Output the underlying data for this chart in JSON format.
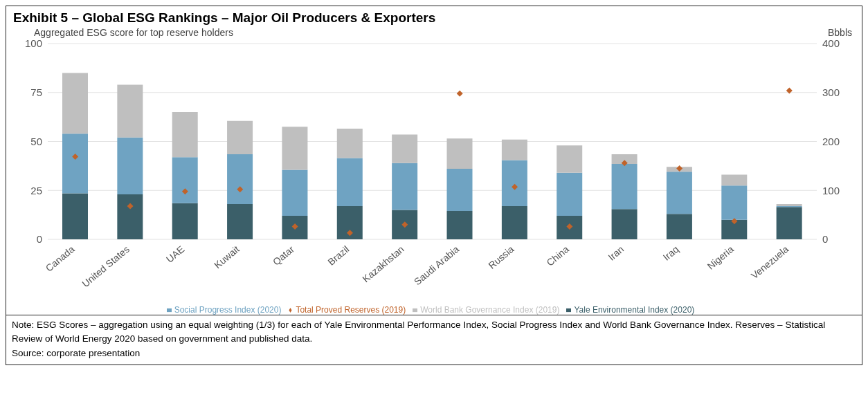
{
  "chart_data": {
    "type": "bar",
    "title": "Exhibit 5 – Global ESG Rankings – Major Oil Producers & Exporters",
    "ylabel": "Aggregated ESG score for top reserve holders",
    "y2label": "Bbbls",
    "categories": [
      "Canada",
      "United States",
      "UAE",
      "Kuwait",
      "Qatar",
      "Brazil",
      "Kazakhstan",
      "Saudi Arabia",
      "Russia",
      "China",
      "Iran",
      "Iraq",
      "Nigeria",
      "Venezuela"
    ],
    "stacked": true,
    "series": [
      {
        "name": "Yale Environmental Index (2020)",
        "color": "#3b5f69",
        "values": [
          23.5,
          23,
          18.5,
          18,
          12,
          17,
          15,
          14.5,
          17,
          12,
          15.5,
          13,
          10,
          16.5
        ]
      },
      {
        "name": "Social Progress Index (2020)",
        "color": "#6fa3c2",
        "values": [
          30.5,
          29,
          23.5,
          25.5,
          23.5,
          24.5,
          24,
          21.5,
          23.5,
          22,
          23,
          21.5,
          17.5,
          0.5
        ]
      },
      {
        "name": "World Bank Governance Index (2019)",
        "color": "#bfbfbf",
        "values": [
          31,
          27,
          23,
          17,
          22,
          15,
          14.5,
          15.5,
          10.5,
          14,
          5,
          2.5,
          5.5,
          1
        ]
      },
      {
        "name": "Total Proved Reserves (2019)",
        "type": "scatter",
        "axis": "y2",
        "marker": "diamond",
        "color": "#c0632a",
        "values": [
          169,
          68,
          98,
          102,
          26,
          13,
          30,
          298,
          107,
          26,
          156,
          145,
          37,
          304
        ]
      }
    ],
    "ylim": [
      0,
      100
    ],
    "yticks": [
      0,
      25,
      50,
      75,
      100
    ],
    "y2lim": [
      0,
      400
    ],
    "y2ticks": [
      0,
      100,
      200,
      300,
      400
    ],
    "grid": "y",
    "legend": "bottom",
    "annotations": [
      "Note: ESG Scores – aggregation using an equal weighting (1/3) for each of Yale Environmental Performance Index, Social Progress Index and World Bank Governance Index. Reserves – Statistical Review of World Energy 2020 based on government and published data.",
      "Source: corporate presentation"
    ]
  }
}
